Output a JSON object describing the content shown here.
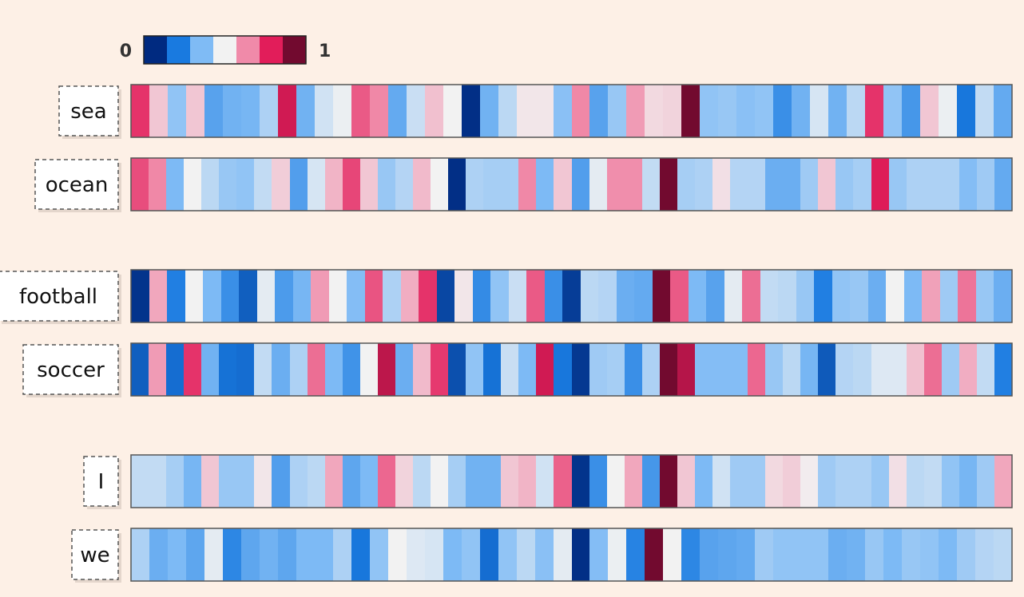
{
  "chart_data": {
    "type": "heatmap",
    "colormap": [
      "#002a80",
      "#197ae0",
      "#7fbbf5",
      "#f2f2f2",
      "#f08aa9",
      "#e21d5a",
      "#720a2f"
    ],
    "colorbar": {
      "min_label": "0",
      "max_label": "1",
      "range": [
        0,
        1
      ]
    },
    "rows": [
      {
        "group": 1,
        "label": "sea",
        "values": [
          0.8,
          0.57,
          0.36,
          0.57,
          0.27,
          0.31,
          0.32,
          0.4,
          0.86,
          0.31,
          0.45,
          0.49,
          0.74,
          0.67,
          0.29,
          0.44,
          0.58,
          0.5,
          0.01,
          0.31,
          0.42,
          0.52,
          0.52,
          0.35,
          0.67,
          0.27,
          0.37,
          0.64,
          0.54,
          0.55,
          1.0,
          0.36,
          0.37,
          0.35,
          0.36,
          0.22,
          0.31,
          0.46,
          0.31,
          0.42,
          0.8,
          0.36,
          0.24,
          0.57,
          0.49,
          0.16,
          0.43,
          0.29
        ]
      },
      {
        "group": 1,
        "label": "ocean",
        "values": [
          0.76,
          0.67,
          0.33,
          0.5,
          0.42,
          0.37,
          0.36,
          0.43,
          0.56,
          0.26,
          0.46,
          0.6,
          0.77,
          0.57,
          0.37,
          0.41,
          0.59,
          0.5,
          0.01,
          0.4,
          0.39,
          0.39,
          0.67,
          0.33,
          0.57,
          0.26,
          0.48,
          0.66,
          0.66,
          0.43,
          1.0,
          0.39,
          0.4,
          0.53,
          0.41,
          0.41,
          0.3,
          0.3,
          0.38,
          0.57,
          0.37,
          0.39,
          0.84,
          0.37,
          0.4,
          0.4,
          0.4,
          0.34,
          0.38,
          0.29
        ]
      },
      {
        "group": 2,
        "label": "football",
        "values": [
          0.02,
          0.62,
          0.18,
          0.5,
          0.33,
          0.22,
          0.11,
          0.48,
          0.25,
          0.32,
          0.64,
          0.5,
          0.34,
          0.75,
          0.4,
          0.61,
          0.8,
          0.06,
          0.52,
          0.21,
          0.36,
          0.44,
          0.74,
          0.22,
          0.04,
          0.42,
          0.41,
          0.3,
          0.29,
          1.0,
          0.74,
          0.33,
          0.27,
          0.48,
          0.71,
          0.43,
          0.42,
          0.37,
          0.18,
          0.36,
          0.37,
          0.3,
          0.5,
          0.33,
          0.63,
          0.38,
          0.7,
          0.37,
          0.3
        ]
      },
      {
        "group": 2,
        "label": "soccer",
        "values": [
          0.11,
          0.64,
          0.14,
          0.8,
          0.31,
          0.15,
          0.14,
          0.43,
          0.3,
          0.4,
          0.71,
          0.33,
          0.23,
          0.5,
          0.89,
          0.3,
          0.59,
          0.79,
          0.08,
          0.36,
          0.15,
          0.44,
          0.33,
          0.86,
          0.16,
          0.03,
          0.38,
          0.39,
          0.22,
          0.4,
          1.0,
          0.9,
          0.34,
          0.34,
          0.34,
          0.72,
          0.37,
          0.42,
          0.32,
          0.1,
          0.41,
          0.42,
          0.47,
          0.47,
          0.58,
          0.71,
          0.38,
          0.61,
          0.43,
          0.18
        ]
      },
      {
        "group": 3,
        "label": "I",
        "values": [
          0.43,
          0.43,
          0.39,
          0.32,
          0.57,
          0.37,
          0.37,
          0.52,
          0.26,
          0.4,
          0.42,
          0.62,
          0.28,
          0.33,
          0.72,
          0.55,
          0.42,
          0.5,
          0.39,
          0.31,
          0.31,
          0.57,
          0.6,
          0.45,
          0.73,
          0.02,
          0.22,
          0.5,
          0.62,
          0.24,
          1.0,
          0.57,
          0.33,
          0.45,
          0.38,
          0.38,
          0.54,
          0.56,
          0.51,
          0.38,
          0.4,
          0.4,
          0.37,
          0.53,
          0.42,
          0.43,
          0.36,
          0.32,
          0.38,
          0.62
        ]
      },
      {
        "group": 3,
        "label": "we",
        "values": [
          0.4,
          0.3,
          0.33,
          0.28,
          0.48,
          0.2,
          0.28,
          0.31,
          0.28,
          0.33,
          0.33,
          0.4,
          0.16,
          0.36,
          0.5,
          0.47,
          0.46,
          0.33,
          0.36,
          0.14,
          0.36,
          0.42,
          0.35,
          0.48,
          0.01,
          0.34,
          0.49,
          0.19,
          1.0,
          0.5,
          0.2,
          0.27,
          0.28,
          0.29,
          0.38,
          0.36,
          0.36,
          0.36,
          0.3,
          0.31,
          0.37,
          0.33,
          0.37,
          0.36,
          0.33,
          0.38,
          0.41,
          0.42
        ]
      }
    ]
  }
}
